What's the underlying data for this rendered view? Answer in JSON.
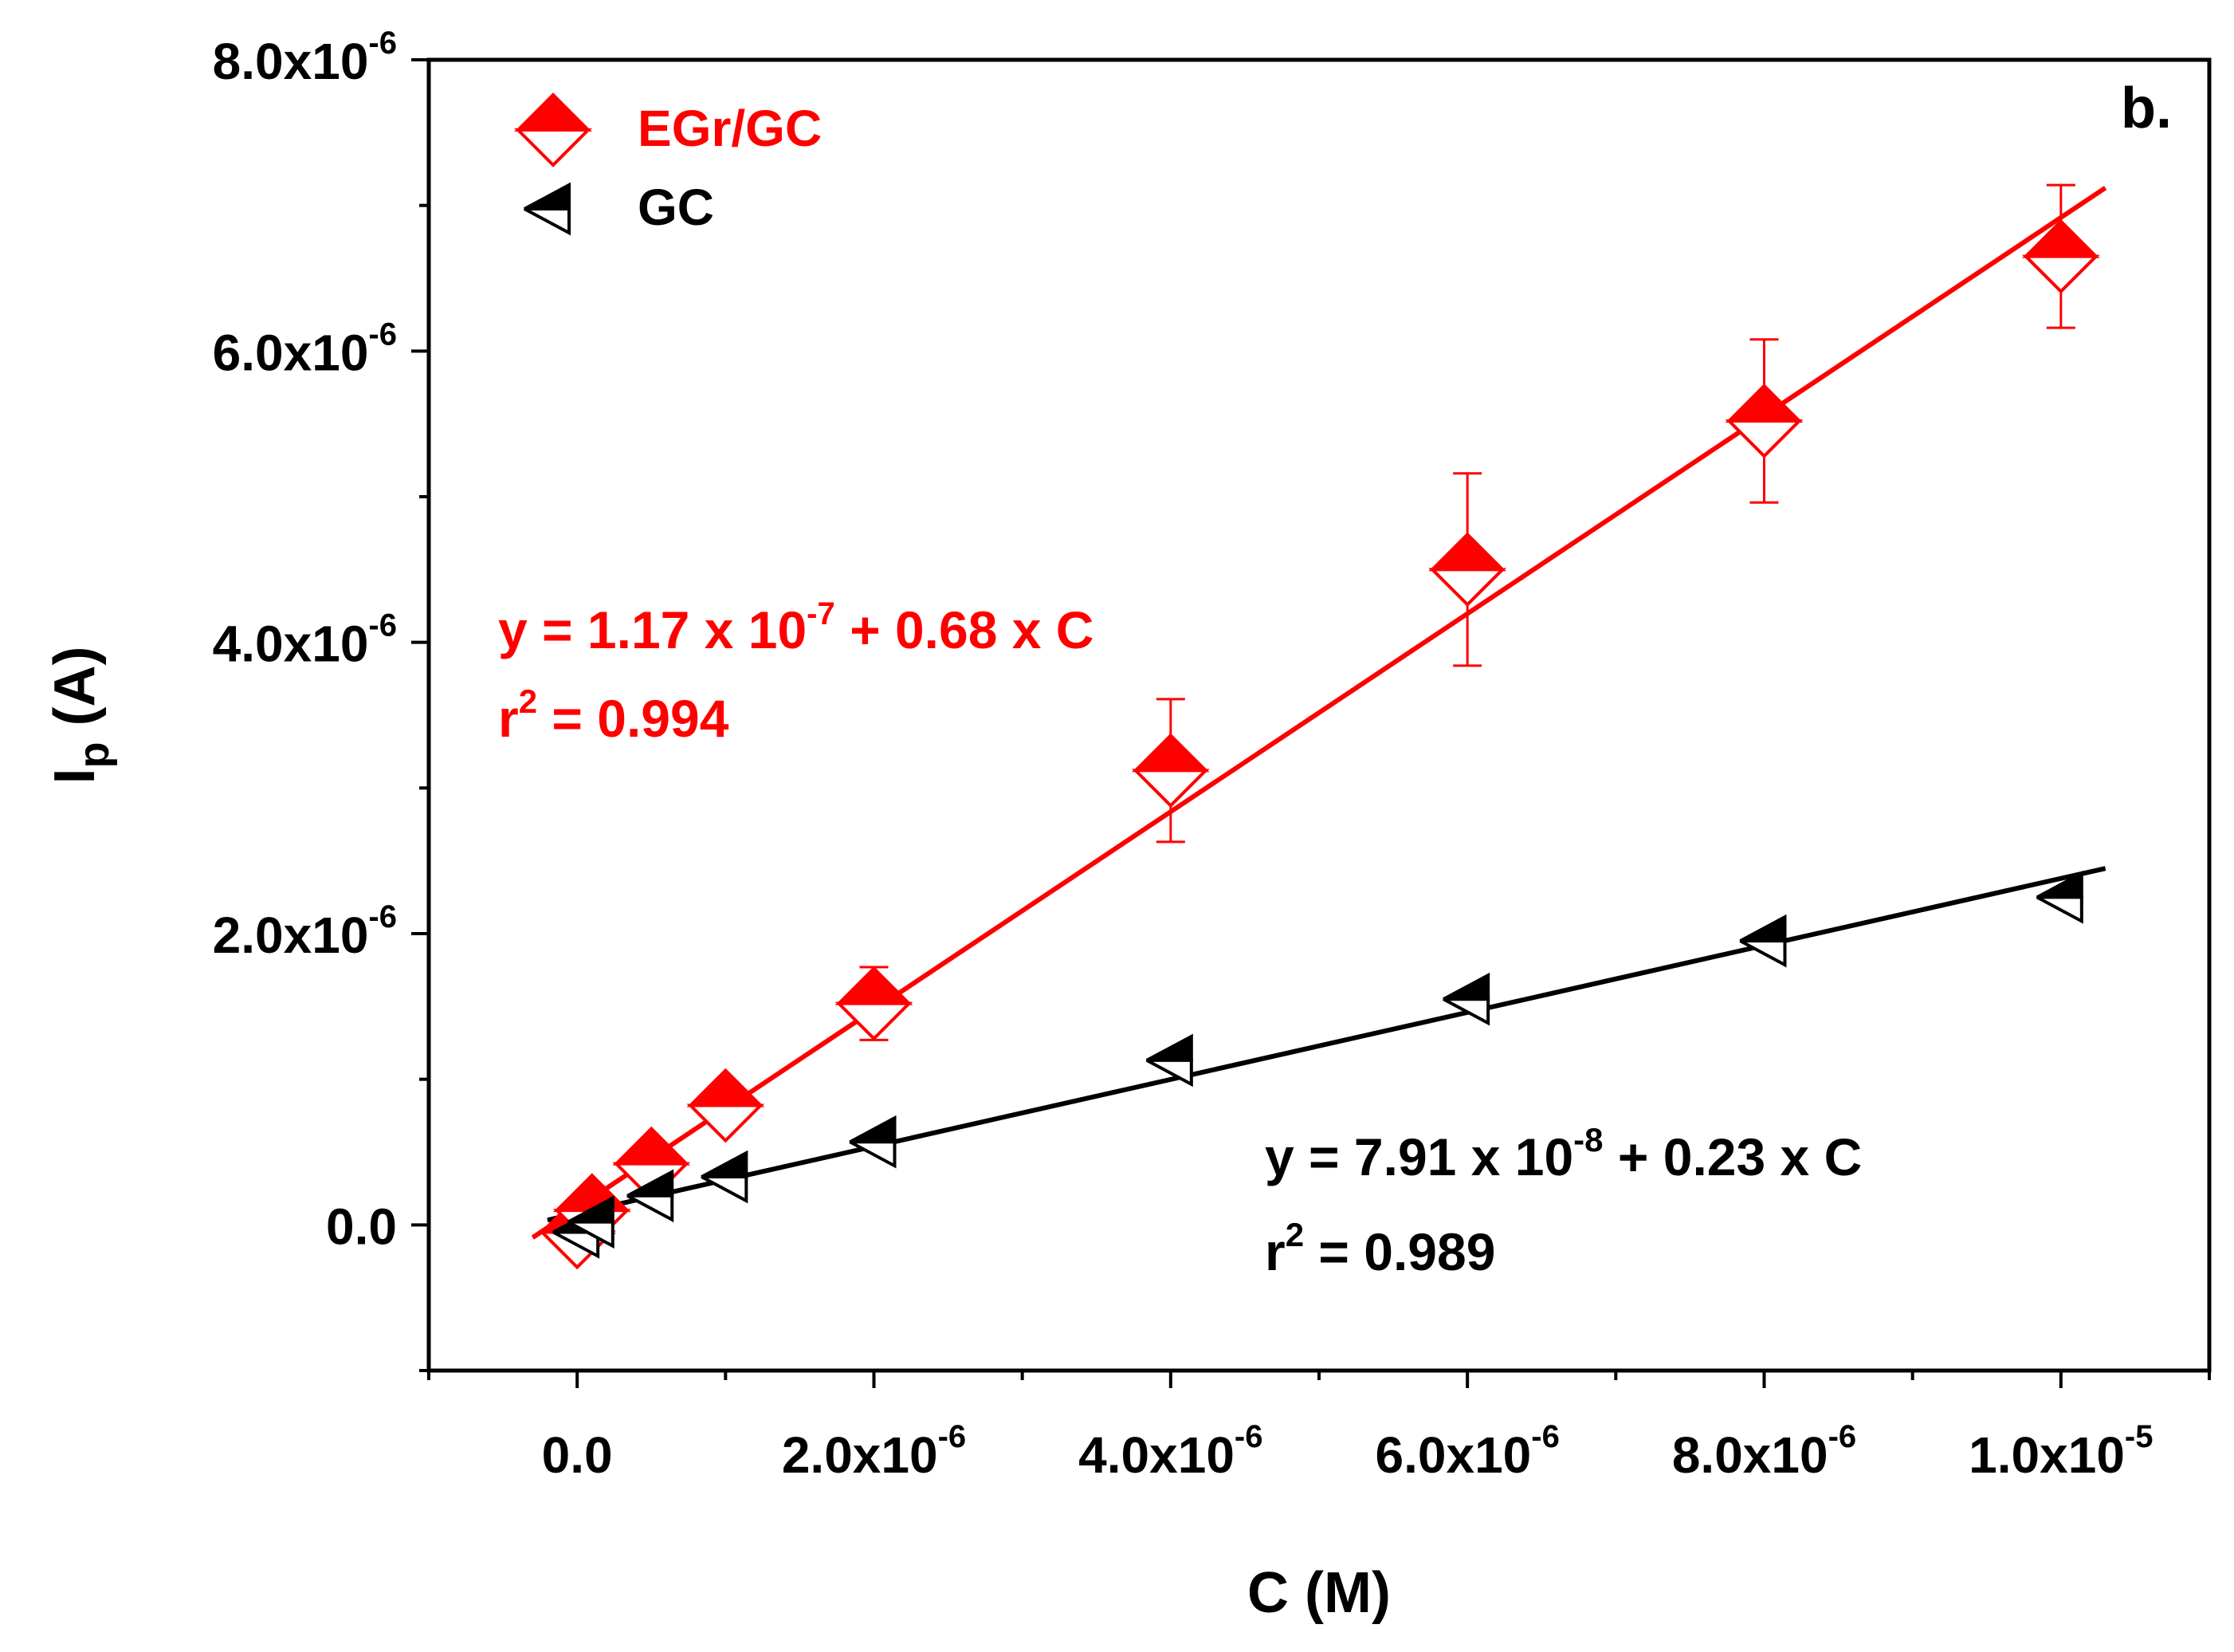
{
  "chart_data": {
    "type": "scatter",
    "panel_label": "b.",
    "xlabel": "C (M)",
    "ylabel": {
      "main": "I",
      "sub": "p",
      "unit": " (A)"
    },
    "xlim": [
      -1e-06,
      1.1e-05
    ],
    "ylim": [
      -1e-06,
      8e-06
    ],
    "x_ticks": [
      {
        "value": 0,
        "mantissa": "0.0",
        "exp": ""
      },
      {
        "value": 2e-06,
        "mantissa": "2.0x10",
        "exp": "-6"
      },
      {
        "value": 4e-06,
        "mantissa": "4.0x10",
        "exp": "-6"
      },
      {
        "value": 6e-06,
        "mantissa": "6.0x10",
        "exp": "-6"
      },
      {
        "value": 8e-06,
        "mantissa": "8.0x10",
        "exp": "-6"
      },
      {
        "value": 1e-05,
        "mantissa": "1.0x10",
        "exp": "-5"
      }
    ],
    "y_ticks": [
      {
        "value": 0,
        "mantissa": "0.0",
        "exp": ""
      },
      {
        "value": 2e-06,
        "mantissa": "2.0x10",
        "exp": "-6"
      },
      {
        "value": 4e-06,
        "mantissa": "4.0x10",
        "exp": "-6"
      },
      {
        "value": 6e-06,
        "mantissa": "6.0x10",
        "exp": "-6"
      },
      {
        "value": 8e-06,
        "mantissa": "8.0x10",
        "exp": "-6"
      }
    ],
    "series": [
      {
        "name": "EGr/GC",
        "color": "#ff0000",
        "marker": "diamond-half",
        "x": [
          0,
          1e-07,
          5e-07,
          1e-06,
          2e-06,
          4e-06,
          6e-06,
          8e-06,
          1e-05
        ],
        "y": [
          -5e-08,
          1e-07,
          4.2e-07,
          8.2e-07,
          1.52e-06,
          3.12e-06,
          4.5e-06,
          5.52e-06,
          6.65e-06
        ],
        "err": [
          0,
          0,
          0,
          0,
          2.5e-07,
          4.9e-07,
          6.6e-07,
          5.6e-07,
          4.9e-07
        ],
        "fit": {
          "intercept": 1.17e-07,
          "slope": 0.68,
          "x_range": [
            -3e-07,
            1.03e-05
          ]
        }
      },
      {
        "name": "GC",
        "color": "#000000",
        "marker": "triangle-left-half",
        "x": [
          0,
          1e-07,
          5e-07,
          1e-06,
          2e-06,
          4e-06,
          6e-06,
          8e-06,
          1e-05
        ],
        "y": [
          -5e-08,
          2e-08,
          2e-07,
          3.3e-07,
          5.7e-07,
          1.13e-06,
          1.55e-06,
          1.95e-06,
          2.25e-06
        ],
        "err": [
          0,
          0,
          0,
          0,
          0,
          0,
          0,
          0,
          0
        ],
        "fit": {
          "intercept": 7.91e-08,
          "slope": 0.23,
          "x_range": [
            -2e-07,
            1.03e-05
          ]
        }
      }
    ],
    "equations": [
      {
        "series": "EGr/GC",
        "color": "#ff0000",
        "line1_pre": "y = 1.17 x 10",
        "line1_exp": "-7",
        "line1_post": " + 0.68 x C",
        "line2_pre": "r",
        "line2_exp": "2",
        "line2_post": " = 0.994"
      },
      {
        "series": "GC",
        "color": "#000000",
        "line1_pre": "y = 7.91 x 10",
        "line1_exp": "-8",
        "line1_post": " + 0.23 x C",
        "line2_pre": "r",
        "line2_exp": "2",
        "line2_post": " = 0.989"
      }
    ],
    "legend": {
      "position": "top-left",
      "entries": [
        "EGr/GC",
        "GC"
      ]
    }
  }
}
